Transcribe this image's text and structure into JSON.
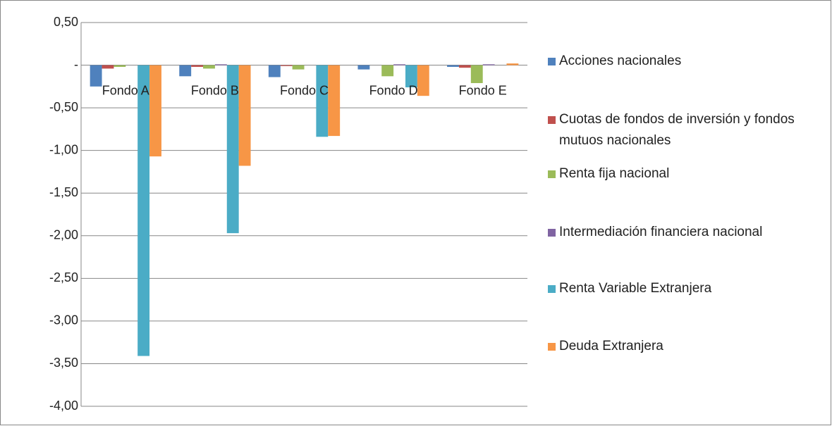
{
  "chart_data": {
    "type": "bar",
    "categories": [
      "Fondo A",
      "Fondo B",
      "Fondo C",
      "Fondo D",
      "Fondo E"
    ],
    "series": [
      {
        "name": "Acciones nacionales",
        "color": "#4f81bd",
        "values": [
          -0.25,
          -0.13,
          -0.14,
          -0.05,
          -0.02
        ]
      },
      {
        "name": "Cuotas de fondos de inversión y fondos mutuos nacionales",
        "color": "#c0504d",
        "values": [
          -0.04,
          -0.02,
          -0.01,
          0,
          -0.03
        ]
      },
      {
        "name": "Renta fija nacional",
        "color": "#9bbb59",
        "values": [
          -0.02,
          -0.04,
          -0.05,
          -0.13,
          -0.21
        ]
      },
      {
        "name": "Intermediación financiera nacional",
        "color": "#8064a2",
        "values": [
          0,
          0.01,
          0,
          0.01,
          0.01
        ]
      },
      {
        "name": "Renta Variable Extranjera",
        "color": "#4bacc6",
        "values": [
          -3.41,
          -1.97,
          -0.84,
          -0.26,
          0
        ]
      },
      {
        "name": "Deuda Extranjera",
        "color": "#f79646",
        "values": [
          -1.07,
          -1.18,
          -0.83,
          -0.36,
          0.02
        ]
      }
    ],
    "ylim": [
      -4,
      0.5
    ],
    "yticks": [
      {
        "value": 0.5,
        "label": "0,50"
      },
      {
        "value": 0,
        "label": "-"
      },
      {
        "value": -0.5,
        "label": "-0,50"
      },
      {
        "value": -1,
        "label": "-1,00"
      },
      {
        "value": -1.5,
        "label": "-1,50"
      },
      {
        "value": -2,
        "label": "-2,00"
      },
      {
        "value": -2.5,
        "label": "-2,50"
      },
      {
        "value": -3,
        "label": "-3,00"
      },
      {
        "value": -3.5,
        "label": "-3,50"
      },
      {
        "value": -4,
        "label": "-4,00"
      }
    ],
    "grid": true,
    "legend": "right"
  }
}
